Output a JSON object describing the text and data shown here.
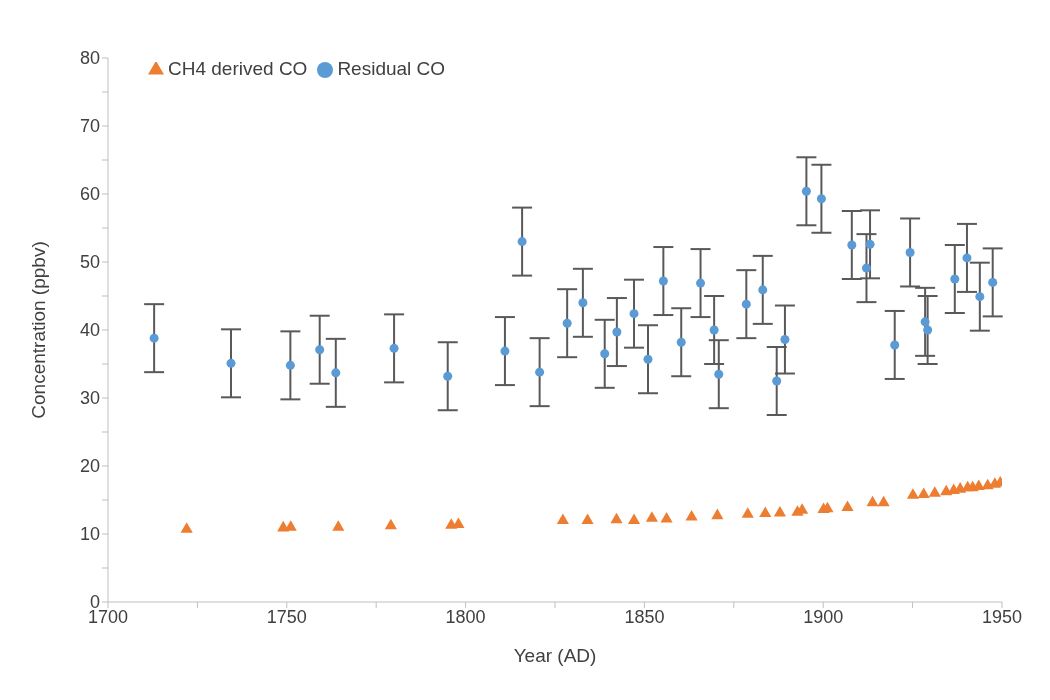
{
  "chart_data": {
    "type": "scatter",
    "xlabel": "Year (AD)",
    "ylabel": "Concentration (ppbv)",
    "xlim": [
      1700,
      1950
    ],
    "xticks": [
      1700,
      {
        "value": 1725,
        "label": null
      },
      1750,
      {
        "value": 1775,
        "label": null
      },
      1800,
      {
        "value": 1825,
        "label": null
      },
      1850,
      {
        "value": 1875,
        "label": null
      },
      1900,
      {
        "value": 1925,
        "label": null
      },
      1950
    ],
    "ylim": [
      0,
      80
    ],
    "yticks": [
      0,
      {
        "value": 5,
        "label": null
      },
      10,
      {
        "value": 15,
        "label": null
      },
      20,
      {
        "value": 25,
        "label": null
      },
      30,
      {
        "value": 35,
        "label": null
      },
      40,
      {
        "value": 45,
        "label": null
      },
      50,
      {
        "value": 55,
        "label": null
      },
      60,
      {
        "value": 65,
        "label": null
      },
      70,
      {
        "value": 75,
        "label": null
      },
      80
    ],
    "grid": false,
    "legend": "top left",
    "series": [
      {
        "name": "Residual CO",
        "color": "#5b9bd5",
        "marker": "circle",
        "x": [
          1712.9,
          1734.4,
          1751.0,
          1759.2,
          1763.7,
          1780.0,
          1795.0,
          1811.0,
          1815.8,
          1820.7,
          1828.4,
          1832.8,
          1838.9,
          1842.3,
          1847.1,
          1851.0,
          1855.3,
          1860.3,
          1865.7,
          1869.5,
          1870.8,
          1878.5,
          1883.1,
          1887.0,
          1889.3,
          1895.3,
          1899.5,
          1908.0,
          1912.1,
          1913.1,
          1920.0,
          1924.3,
          1928.5,
          1929.2,
          1936.8,
          1940.2,
          1943.8,
          1947.4
        ],
        "values": [
          38.8,
          35.1,
          34.8,
          37.1,
          33.7,
          37.3,
          33.2,
          36.9,
          53.0,
          33.8,
          41.0,
          44.0,
          36.5,
          39.7,
          42.4,
          35.7,
          47.2,
          38.2,
          46.9,
          40.0,
          33.5,
          43.8,
          45.9,
          32.5,
          38.6,
          60.4,
          59.3,
          52.5,
          49.1,
          52.6,
          37.8,
          51.4,
          41.2,
          40.0,
          47.5,
          50.6,
          44.9,
          47.0
        ],
        "errors": [
          5,
          5,
          5,
          5,
          5,
          5,
          5,
          5,
          5,
          5,
          5,
          5,
          5,
          5,
          5,
          5,
          5,
          5,
          5,
          5,
          5,
          5,
          5,
          5,
          5,
          5,
          5,
          5,
          5,
          5,
          5,
          5,
          5,
          5,
          5,
          5,
          5,
          5
        ]
      },
      {
        "name": "CH4 derived CO",
        "color": "#ed7d31",
        "marker": "triangle",
        "x": [
          1722.0,
          1749.0,
          1751.1,
          1764.4,
          1779.1,
          1796.0,
          1798.0,
          1827.2,
          1834.1,
          1842.2,
          1847.1,
          1852.1,
          1856.2,
          1863.2,
          1870.4,
          1878.9,
          1883.8,
          1887.9,
          1892.8,
          1894.1,
          1900.1,
          1901.2,
          1906.8,
          1913.8,
          1916.9,
          1925.1,
          1928.1,
          1931.2,
          1934.4,
          1936.5,
          1938.3,
          1940.4,
          1941.8,
          1943.5,
          1946.0,
          1948.0,
          1949.5
        ],
        "values": [
          10.7,
          10.9,
          11.0,
          11.0,
          11.2,
          11.3,
          11.4,
          12.0,
          12.0,
          12.1,
          12.0,
          12.3,
          12.2,
          12.5,
          12.7,
          12.9,
          13.0,
          13.1,
          13.2,
          13.5,
          13.6,
          13.7,
          13.9,
          14.6,
          14.6,
          15.7,
          15.8,
          16.0,
          16.2,
          16.4,
          16.6,
          16.8,
          16.8,
          17.0,
          17.1,
          17.3,
          17.5
        ]
      }
    ]
  }
}
